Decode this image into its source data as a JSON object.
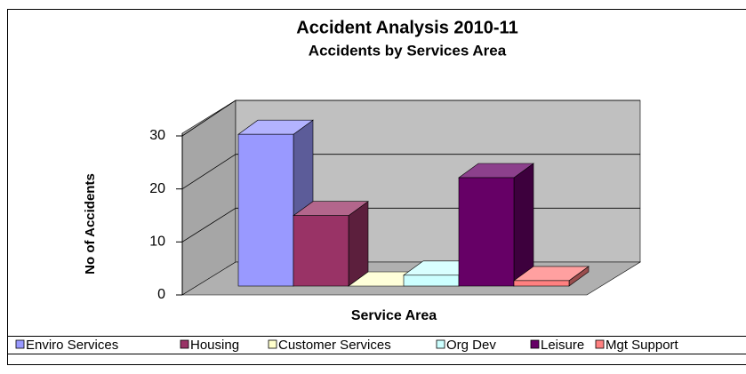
{
  "chart_data": {
    "type": "bar3d",
    "title": "Accident Analysis 2010-11",
    "subtitle": "Accidents by Services Area",
    "y_label": "No of Accidents",
    "x_label": "Service Area",
    "ylim": [
      0,
      30
    ],
    "yticks": [
      0,
      10,
      20,
      30
    ],
    "grid": true,
    "series": [
      {
        "name": "Enviro Services",
        "color": "#9999ff",
        "values": [
          28
        ]
      },
      {
        "name": "Housing",
        "color": "#993366",
        "values": [
          13
        ]
      },
      {
        "name": "Customer Services",
        "color": "#ffffcc",
        "values": [
          0
        ]
      },
      {
        "name": "Org Dev",
        "color": "#ccffff",
        "values": [
          2
        ]
      },
      {
        "name": "Leisure",
        "color": "#660066",
        "values": [
          20
        ]
      },
      {
        "name": "Mgt Support",
        "color": "#ff8080",
        "values": [
          1
        ]
      }
    ]
  }
}
